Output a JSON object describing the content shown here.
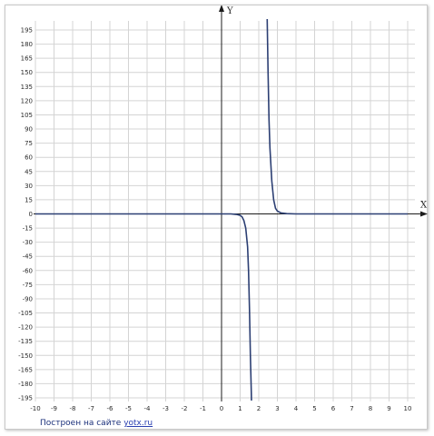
{
  "chart_data": {
    "type": "line",
    "title": "",
    "xlabel": "X",
    "ylabel": "Y",
    "xlim": [
      -10,
      10
    ],
    "ylim": [
      -200,
      200
    ],
    "grid": true,
    "x_ticks": [
      "-10",
      "-9",
      "-8",
      "-7",
      "-6",
      "-5",
      "-4",
      "-3",
      "-2",
      "-1",
      "0",
      "1",
      "2",
      "3",
      "4",
      "5",
      "6",
      "7",
      "8",
      "9",
      "10"
    ],
    "y_ticks": [
      "195",
      "180",
      "165",
      "150",
      "135",
      "120",
      "105",
      "90",
      "75",
      "60",
      "45",
      "30",
      "15",
      "0",
      "-15",
      "-30",
      "-45",
      "-60",
      "-75",
      "-90",
      "-105",
      "-120",
      "-135",
      "-150",
      "-165",
      "-180",
      "-195"
    ],
    "series": [
      {
        "color": "#2c3f73",
        "x": [
          -10,
          -5,
          0,
          0.5,
          0.8,
          1.0,
          1.1,
          1.2,
          1.3,
          1.4,
          1.45,
          1.5,
          1.55,
          1.6,
          1.62
        ],
        "y": [
          0,
          0,
          0,
          0,
          -0.5,
          -1.5,
          -3,
          -7,
          -15,
          -35,
          -60,
          -100,
          -150,
          -190,
          -210
        ]
      },
      {
        "color": "#2c3f73",
        "x": [
          2.45,
          2.5,
          2.55,
          2.6,
          2.7,
          2.8,
          2.9,
          3.0,
          3.2,
          3.5,
          4,
          6,
          8,
          10
        ],
        "y": [
          210,
          150,
          100,
          70,
          35,
          15,
          6,
          3,
          1,
          0.3,
          0,
          0,
          0,
          0
        ]
      }
    ]
  },
  "footer": {
    "prefix": "Построен на сайте ",
    "link": "yotx.ru"
  }
}
